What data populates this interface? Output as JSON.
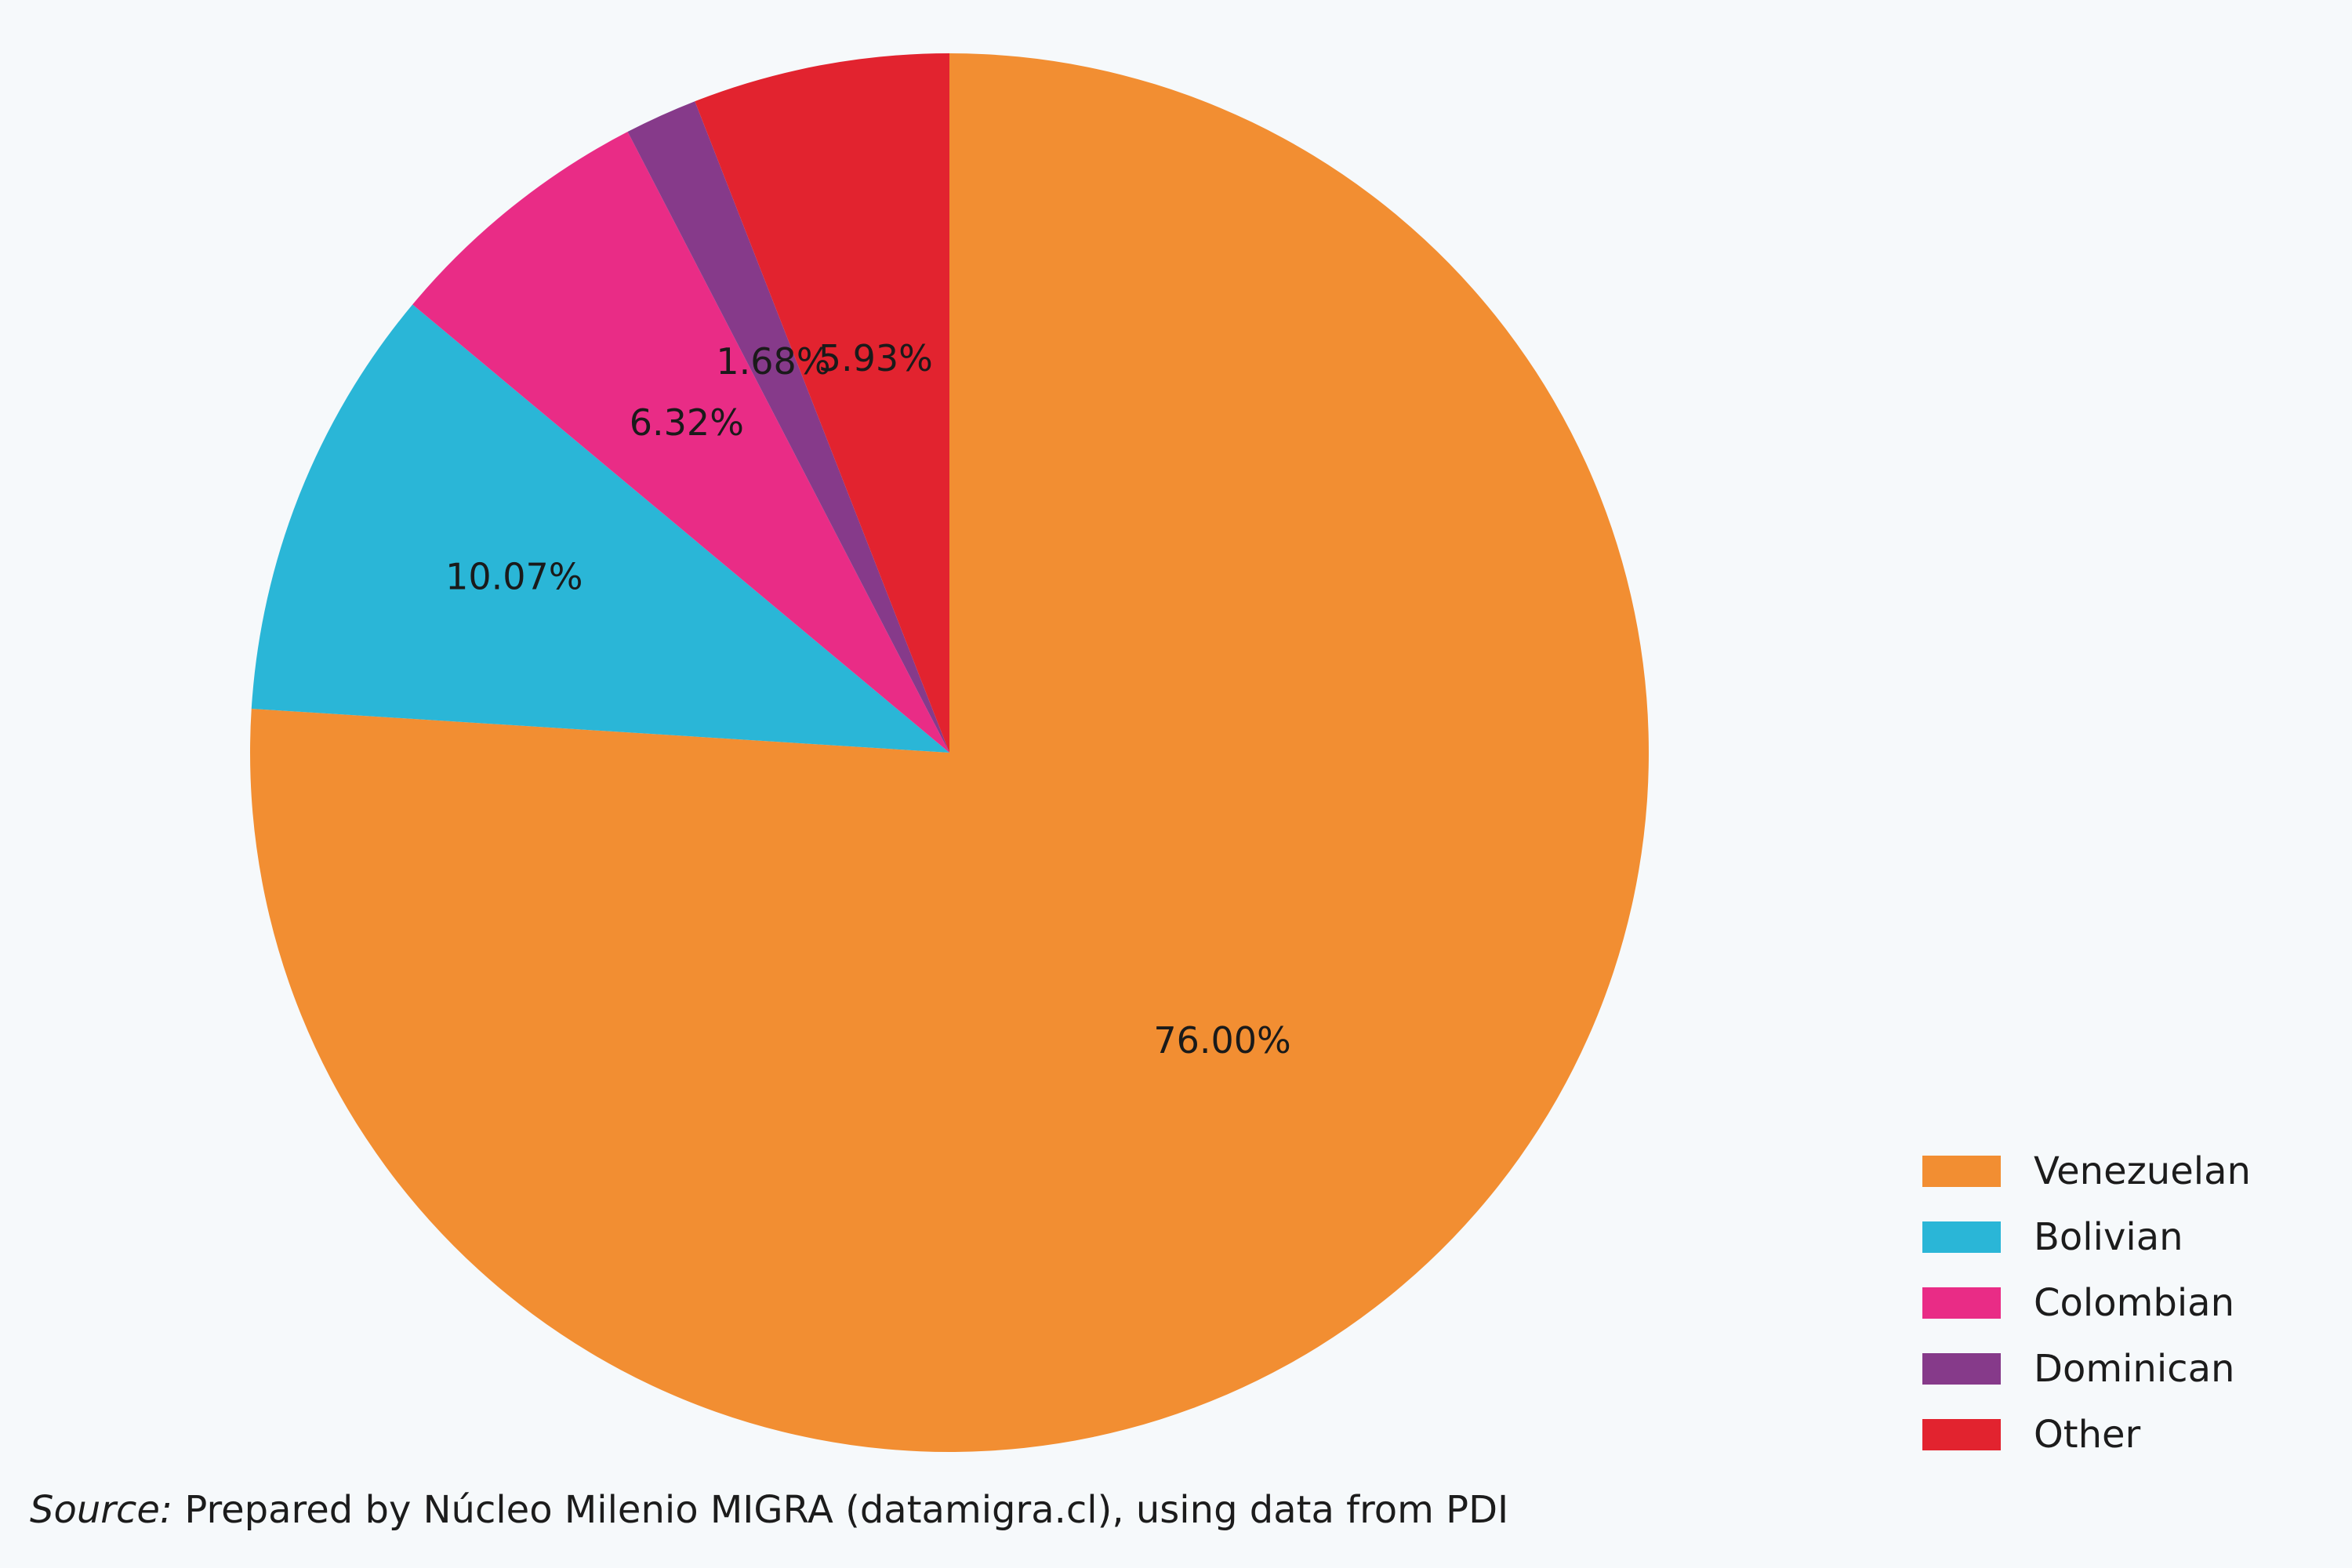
{
  "chart_data": {
    "type": "pie",
    "categories": [
      "Venezuelan",
      "Bolivian",
      "Colombian",
      "Dominican",
      "Other"
    ],
    "values": [
      76.0,
      10.07,
      6.32,
      1.68,
      5.93
    ],
    "value_labels": [
      "76.00%",
      "10.07%",
      "6.32%",
      "1.68%",
      "5.93%"
    ],
    "colors": [
      "#f28e32",
      "#2ab6d7",
      "#e92c86",
      "#863a8a",
      "#e2232f"
    ],
    "start": "12 o'clock",
    "direction": "clockwise",
    "legend": {
      "position": "bottom-right",
      "entries": [
        "Venezuelan",
        "Bolivian",
        "Colombian",
        "Dominican",
        "Other"
      ]
    }
  },
  "source": {
    "prefix": "Source:",
    "text": " Prepared by Núcleo Milenio MIGRA (datamigra.cl), using data from PDI"
  }
}
